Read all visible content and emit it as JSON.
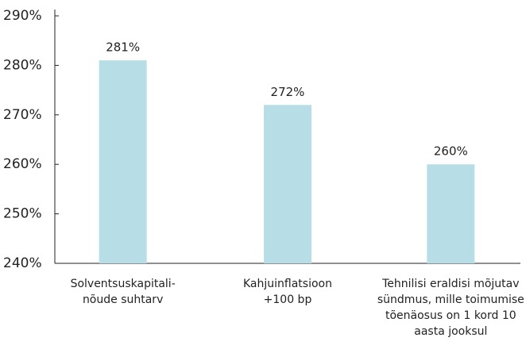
{
  "chart_data": {
    "type": "bar",
    "categories": [
      "Solventsuskapitali-\nnõude suhtarv",
      "Kahjuinflatsioon\n+100 bp",
      "Tehnilisi eraldisi mõjutav\nsündmus, mille toimumise\ntõenäosus on 1 kord 10\naasta jooksul"
    ],
    "values": [
      281,
      272,
      260
    ],
    "value_labels": [
      "281%",
      "272%",
      "260%"
    ],
    "color": "#b7dde6",
    "ylim": [
      240,
      290
    ],
    "yticks": [
      {
        "value": 240,
        "label": "240%"
      },
      {
        "value": 250,
        "label": "250%"
      },
      {
        "value": 260,
        "label": "260%"
      },
      {
        "value": 270,
        "label": "270%"
      },
      {
        "value": 280,
        "label": "280%"
      },
      {
        "value": 290,
        "label": "290%"
      }
    ],
    "grid": false
  }
}
